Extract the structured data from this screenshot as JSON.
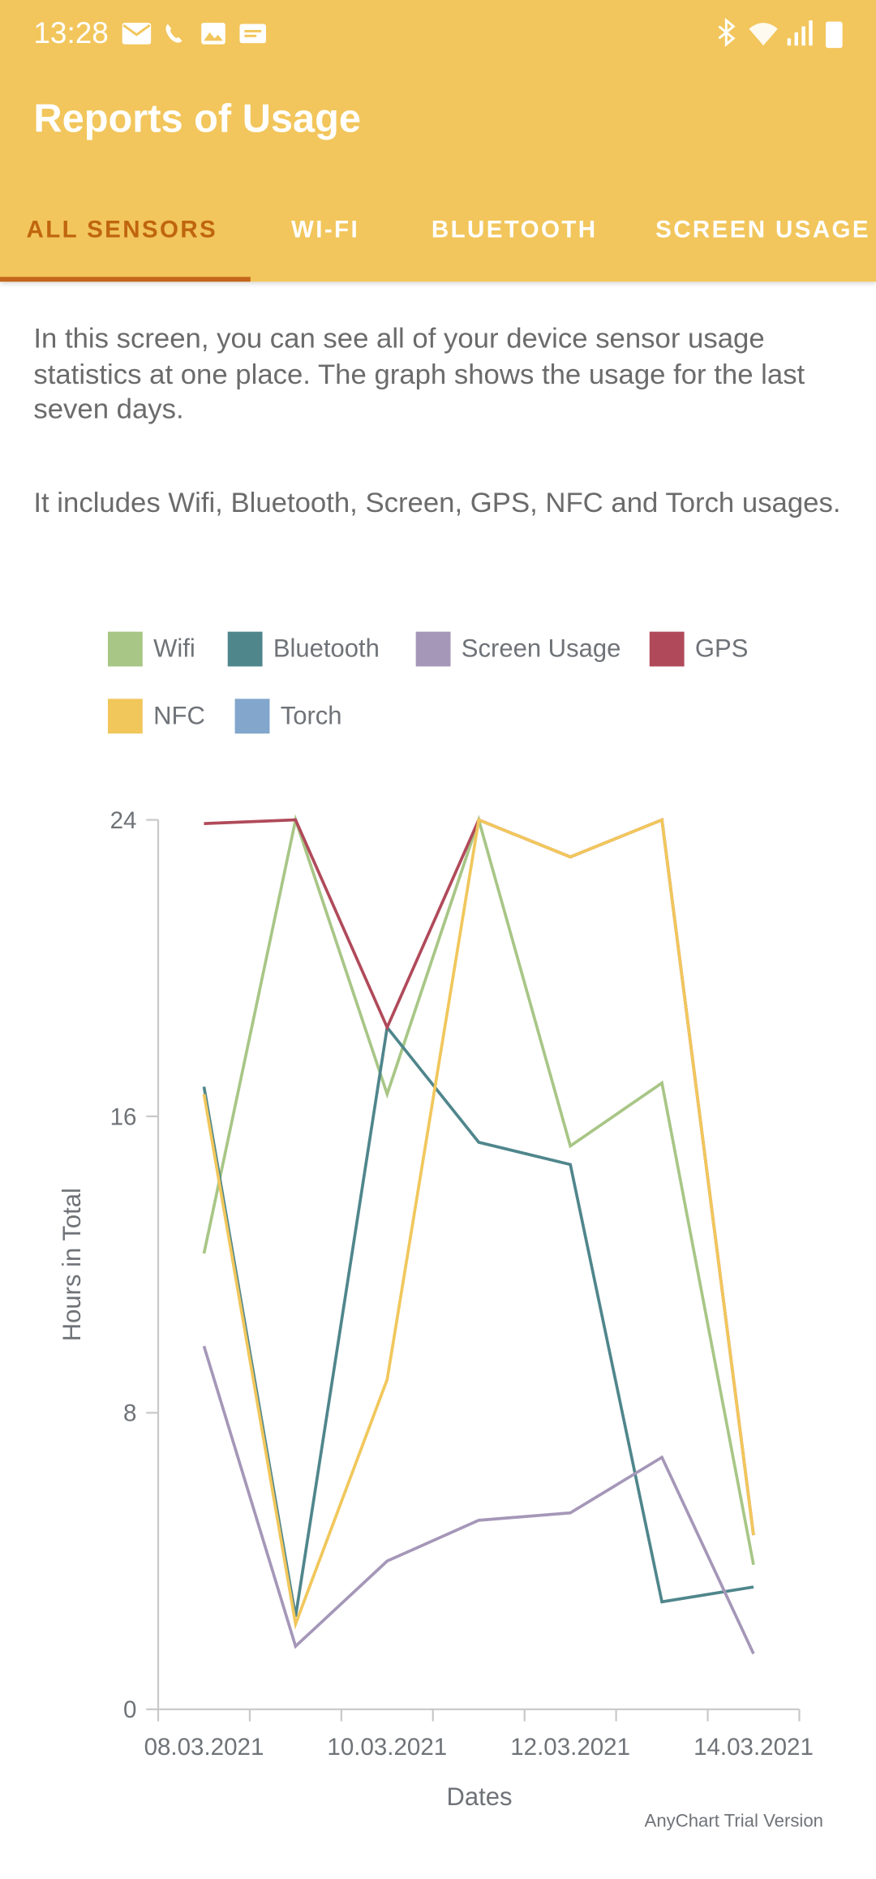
{
  "status_bar": {
    "time": "13:28"
  },
  "header": {
    "title": "Reports of Usage"
  },
  "tabs": [
    "ALL SENSORS",
    "WI-FI",
    "BLUETOOTH",
    "SCREEN USAGE"
  ],
  "description": [
    "In this screen, you can see all of your device sensor usage statistics at one place. The graph shows the usage for the last seven days.",
    "It includes Wifi, Bluetooth, Screen, GPS, NFC and Torch usages."
  ],
  "chart_data": {
    "type": "line",
    "categories": [
      "08.03.2021",
      null,
      "10.03.2021",
      null,
      "12.03.2021",
      null,
      "14.03.2021"
    ],
    "series": [
      {
        "name": "Wifi",
        "color": "#a8c686",
        "values": [
          12.3,
          24,
          16.6,
          24,
          15.2,
          16.9,
          3.9
        ]
      },
      {
        "name": "Bluetooth",
        "color": "#4f868c",
        "values": [
          16.8,
          2.5,
          18.4,
          15.3,
          14.7,
          2.9,
          3.3
        ]
      },
      {
        "name": "Screen Usage",
        "color": "#a597b8",
        "values": [
          9.8,
          1.7,
          4.0,
          5.1,
          5.3,
          6.8,
          1.5
        ]
      },
      {
        "name": "GPS",
        "color": "#b04a5a",
        "values": [
          23.9,
          24,
          18.4,
          24,
          23.0,
          24,
          4.7
        ]
      },
      {
        "name": "NFC",
        "color": "#f1c75c",
        "values": [
          16.6,
          2.3,
          8.9,
          24,
          23.0,
          24,
          4.7
        ]
      },
      {
        "name": "Torch",
        "color": "#82a6cc",
        "values": [
          null,
          null,
          null,
          null,
          null,
          null,
          null
        ]
      }
    ],
    "ylim": [
      0,
      24
    ],
    "yticks": [
      0,
      8,
      16,
      24
    ],
    "y_label": "Hours in Total",
    "x_label": "Dates",
    "credit": "AnyChart Trial Version"
  }
}
